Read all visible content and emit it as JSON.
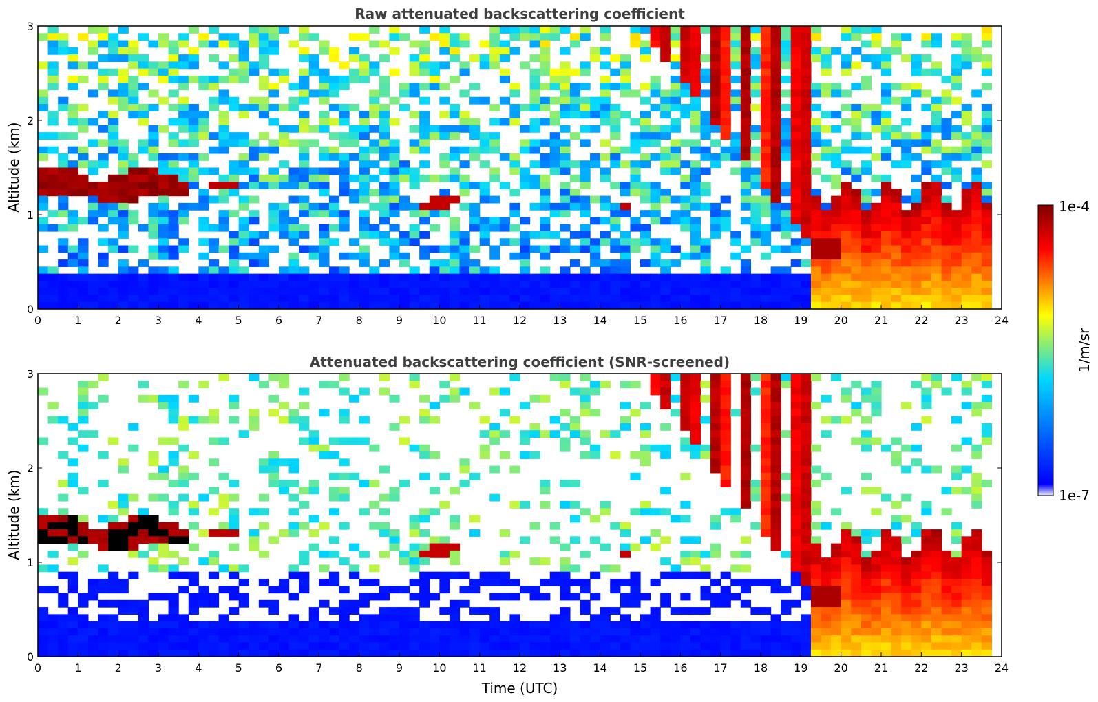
{
  "chart_data": [
    {
      "type": "heatmap",
      "title": "Raw attenuated backscattering coefficient",
      "xlabel": "",
      "ylabel": "Altitude (km)",
      "xlim": [
        0,
        24
      ],
      "ylim": [
        0,
        3
      ],
      "x_ticks": [
        "0",
        "1",
        "2",
        "3",
        "4",
        "5",
        "6",
        "7",
        "8",
        "9",
        "10",
        "11",
        "12",
        "13",
        "14",
        "15",
        "16",
        "17",
        "18",
        "19",
        "20",
        "21",
        "22",
        "23",
        "24"
      ],
      "y_ticks": [
        "0",
        "1",
        "2",
        "3"
      ],
      "features": [
        {
          "name": "low cloud layer",
          "t_start": 0,
          "t_end": 3.8,
          "alt_km": [
            1.15,
            1.55
          ],
          "level": "high"
        },
        {
          "name": "cloud fragments",
          "t_start": 4.3,
          "t_end": 4.9,
          "alt_km": [
            1.25,
            1.35
          ],
          "level": "high"
        },
        {
          "name": "cloud fragments",
          "t_start": 9.4,
          "t_end": 10.4,
          "alt_km": [
            1.0,
            1.15
          ],
          "level": "high"
        },
        {
          "name": "precipitation fall streaks",
          "t_start": 15.0,
          "t_end": 19.2,
          "alt_km": [
            0.8,
            3.0
          ],
          "level": "high"
        },
        {
          "name": "boundary layer clouds and rain",
          "t_start": 19.2,
          "t_end": 23.8,
          "alt_km": [
            0.0,
            1.3
          ],
          "level": "high"
        }
      ]
    },
    {
      "type": "heatmap",
      "title": "Attenuated backscattering coefficient (SNR-screened)",
      "xlabel": "Time (UTC)",
      "ylabel": "Altitude (km)",
      "xlim": [
        0,
        24
      ],
      "ylim": [
        0,
        3
      ],
      "x_ticks": [
        "0",
        "1",
        "2",
        "3",
        "4",
        "5",
        "6",
        "7",
        "8",
        "9",
        "10",
        "11",
        "12",
        "13",
        "14",
        "15",
        "16",
        "17",
        "18",
        "19",
        "20",
        "21",
        "22",
        "23",
        "24"
      ],
      "y_ticks": [
        "0",
        "1",
        "2",
        "3"
      ],
      "features": [
        {
          "name": "low cloud layer",
          "t_start": 0,
          "t_end": 3.8,
          "alt_km": [
            1.15,
            1.55
          ],
          "level": "high"
        },
        {
          "name": "precipitation fall streaks",
          "t_start": 15.0,
          "t_end": 19.2,
          "alt_km": [
            0.8,
            3.0
          ],
          "level": "high"
        },
        {
          "name": "boundary layer clouds and rain",
          "t_start": 19.2,
          "t_end": 23.8,
          "alt_km": [
            0.0,
            1.4
          ],
          "level": "high"
        }
      ]
    }
  ],
  "colorbar": {
    "label": "1/m/sr",
    "min_label": "1e-7",
    "max_label": "1e-4",
    "colors": [
      "#e8e8f8",
      "#0000ff",
      "#00d8ff",
      "#ffff00",
      "#ff0000",
      "#800000"
    ]
  }
}
